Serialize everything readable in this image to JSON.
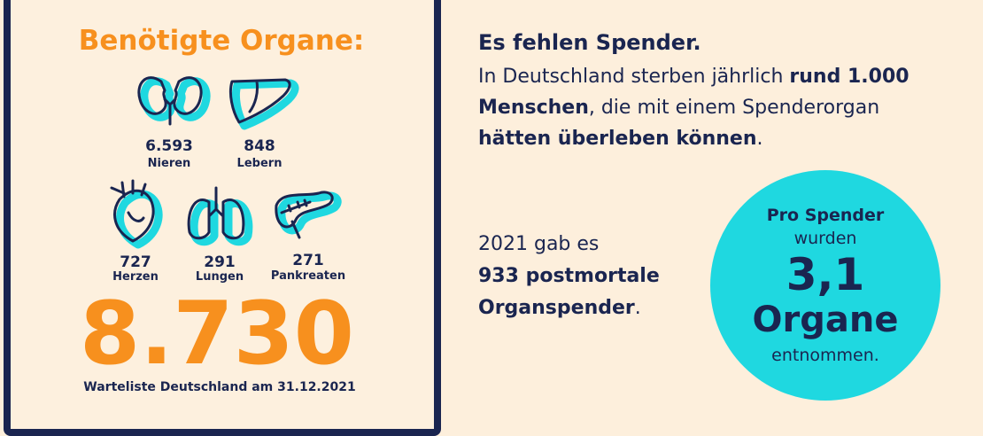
{
  "left_panel": {
    "title": "Benötigte Organe:",
    "organs": [
      {
        "number": "6.593",
        "label": "Nieren"
      },
      {
        "number": "848",
        "label": "Lebern"
      },
      {
        "number": "727",
        "label": "Herzen"
      },
      {
        "number": "291",
        "label": "Lungen"
      },
      {
        "number": "271",
        "label": "Pankreaten"
      }
    ],
    "total": "8.730",
    "caption": "Warteliste Deutschland am 31.12.2021"
  },
  "right_panel": {
    "heading": "Es fehlen Spender.",
    "paragraph": [
      [
        "In Deutschland sterben jährlich ",
        "rund 1.000"
      ],
      [
        "Menschen",
        ", die mit einem Spenderorgan"
      ],
      [
        "hätten überleben können",
        "."
      ]
    ],
    "donors": [
      [
        "2021 gab es"
      ],
      [
        "933 postmortale"
      ],
      [
        "Organspender",
        "."
      ]
    ],
    "circle": {
      "line1": "Pro Spender",
      "line2": "wurden",
      "number": "3,1",
      "line3": "Organe",
      "line4": "entnommen."
    }
  }
}
